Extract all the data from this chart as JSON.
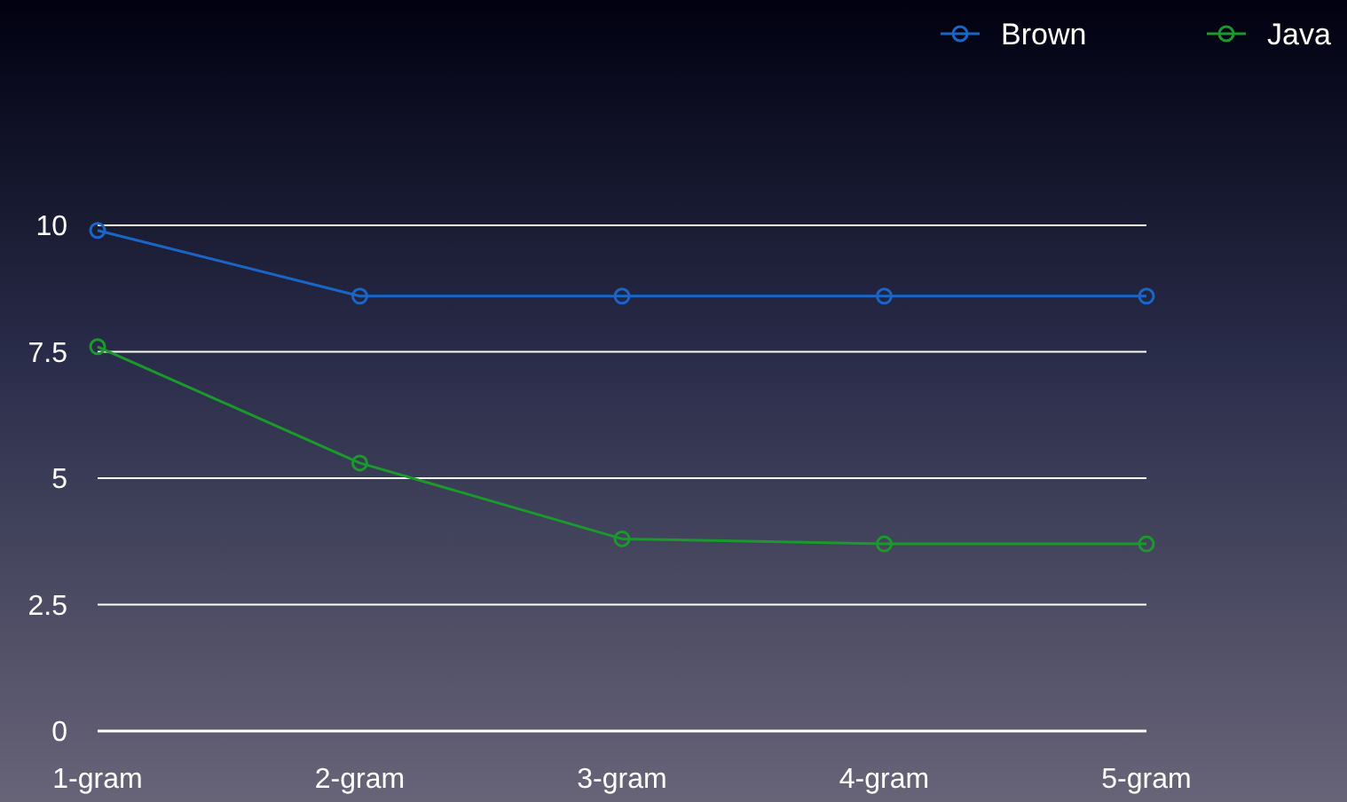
{
  "chart_data": {
    "type": "line",
    "categories": [
      "1-gram",
      "2-gram",
      "3-gram",
      "4-gram",
      "5-gram"
    ],
    "series": [
      {
        "name": "Brown",
        "color": "#1a66c8",
        "values": [
          9.9,
          8.6,
          8.6,
          8.6,
          8.6
        ]
      },
      {
        "name": "Java",
        "color": "#1a9a2a",
        "values": [
          7.6,
          5.3,
          3.8,
          3.7,
          3.7
        ]
      }
    ],
    "ylim": [
      0,
      10
    ],
    "yticks": [
      0,
      2.5,
      5,
      7.5,
      10
    ],
    "grid": "y",
    "legend": "top right",
    "marker": "circle",
    "line_style": "solid"
  }
}
